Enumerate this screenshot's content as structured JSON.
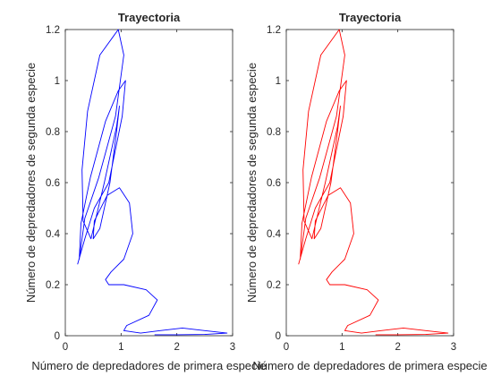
{
  "chart_data": [
    {
      "type": "line",
      "title": "Trayectoria",
      "xlabel": "Número de depredadores de primera especie",
      "ylabel": "Número de depredadores de segunda especie",
      "xlim": [
        0,
        3
      ],
      "ylim": [
        0,
        1.2
      ],
      "xticks": [
        "0",
        "1",
        "2",
        "3"
      ],
      "yticks": [
        "0",
        "0.2",
        "0.4",
        "0.6",
        "0.8",
        "1",
        "1.2"
      ],
      "grid": false,
      "series": [
        {
          "color": "#0000ff",
          "x": [
            0.22,
            0.35,
            0.52,
            0.78,
            1.02,
            1.08,
            0.95,
            0.72,
            0.45,
            0.28,
            0.25,
            0.35,
            0.6,
            0.9,
            1.05,
            0.95,
            0.62,
            0.4,
            0.3,
            0.32,
            0.46,
            0.7,
            0.92,
            0.97,
            0.92,
            0.8,
            0.62,
            0.5,
            0.52,
            0.75,
            0.97,
            1.15,
            1.21,
            1.05,
            0.82,
            0.72,
            0.78,
            1.05,
            1.45,
            1.65,
            1.5,
            1.1,
            1.05,
            1.35,
            1.7,
            2.1,
            2.5,
            2.9,
            2.5,
            2.0,
            1.6
          ],
          "y": [
            0.28,
            0.38,
            0.5,
            0.6,
            0.86,
            1.0,
            0.96,
            0.84,
            0.62,
            0.44,
            0.3,
            0.46,
            0.62,
            0.86,
            1.1,
            1.2,
            1.1,
            0.88,
            0.65,
            0.45,
            0.38,
            0.6,
            0.82,
            0.9,
            0.8,
            0.6,
            0.42,
            0.38,
            0.45,
            0.55,
            0.58,
            0.52,
            0.4,
            0.3,
            0.25,
            0.22,
            0.2,
            0.2,
            0.18,
            0.14,
            0.08,
            0.04,
            0.02,
            0.01,
            0.02,
            0.03,
            0.02,
            0.01,
            0.005,
            0.004,
            0.004
          ]
        }
      ]
    },
    {
      "type": "line",
      "title": "Trayectoria",
      "xlabel": "Número de depredadores de primera especie",
      "ylabel": "Número de depredadores de segunda especie",
      "xlim": [
        0,
        3
      ],
      "ylim": [
        0,
        1.2
      ],
      "xticks": [
        "0",
        "1",
        "2",
        "3"
      ],
      "yticks": [
        "0",
        "0.2",
        "0.4",
        "0.6",
        "0.8",
        "1",
        "1.2"
      ],
      "grid": false,
      "series": [
        {
          "color": "#ff0000",
          "x": [
            0.22,
            0.35,
            0.52,
            0.78,
            1.02,
            1.08,
            0.95,
            0.72,
            0.45,
            0.28,
            0.25,
            0.35,
            0.6,
            0.9,
            1.05,
            0.95,
            0.62,
            0.4,
            0.3,
            0.32,
            0.46,
            0.7,
            0.92,
            0.97,
            0.92,
            0.8,
            0.62,
            0.5,
            0.52,
            0.75,
            0.97,
            1.15,
            1.21,
            1.05,
            0.82,
            0.72,
            0.78,
            1.05,
            1.45,
            1.65,
            1.5,
            1.1,
            1.05,
            1.35,
            1.7,
            2.1,
            2.5,
            2.9,
            2.5,
            2.0,
            1.6
          ],
          "y": [
            0.28,
            0.38,
            0.5,
            0.6,
            0.86,
            1.0,
            0.96,
            0.84,
            0.62,
            0.44,
            0.3,
            0.46,
            0.62,
            0.86,
            1.1,
            1.2,
            1.1,
            0.88,
            0.65,
            0.45,
            0.38,
            0.6,
            0.82,
            0.9,
            0.8,
            0.6,
            0.42,
            0.38,
            0.45,
            0.55,
            0.58,
            0.52,
            0.4,
            0.3,
            0.25,
            0.22,
            0.2,
            0.2,
            0.18,
            0.14,
            0.08,
            0.04,
            0.02,
            0.01,
            0.02,
            0.03,
            0.02,
            0.01,
            0.005,
            0.004,
            0.004
          ]
        }
      ]
    }
  ]
}
